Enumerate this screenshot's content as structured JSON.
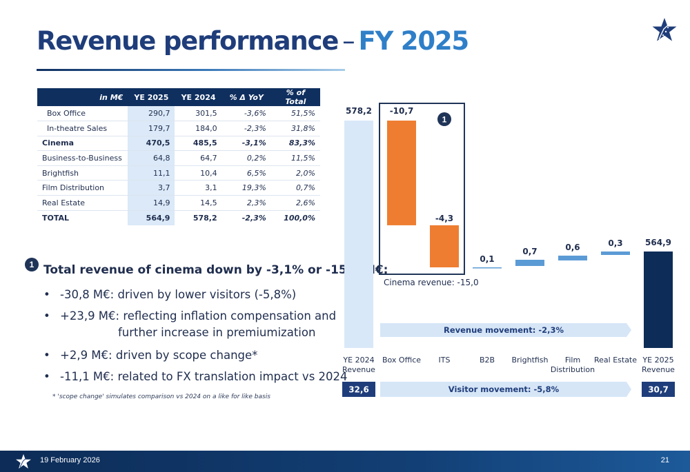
{
  "header": {
    "title": "Revenue performance",
    "dash": "–",
    "year": "FY 2025"
  },
  "table": {
    "headers": [
      "in M€",
      "YE 2025",
      "YE 2024",
      "% Δ YoY",
      "% of Total"
    ],
    "rows": [
      {
        "label": "Box Office",
        "ye2025": "290,7",
        "ye2024": "301,5",
        "yoy": "-3,6%",
        "pct": "51,5%",
        "indent": true,
        "bold": false
      },
      {
        "label": "In-theatre Sales",
        "ye2025": "179,7",
        "ye2024": "184,0",
        "yoy": "-2,3%",
        "pct": "31,8%",
        "indent": true,
        "bold": false
      },
      {
        "label": "Cinema",
        "ye2025": "470,5",
        "ye2024": "485,5",
        "yoy": "-3,1%",
        "pct": "83,3%",
        "indent": false,
        "bold": true
      },
      {
        "label": "Business-to-Business",
        "ye2025": "64,8",
        "ye2024": "64,7",
        "yoy": "0,2%",
        "pct": "11,5%",
        "indent": false,
        "bold": false
      },
      {
        "label": "Brightfish",
        "ye2025": "11,1",
        "ye2024": "10,4",
        "yoy": "6,5%",
        "pct": "2,0%",
        "indent": false,
        "bold": false
      },
      {
        "label": "Film Distribution",
        "ye2025": "3,7",
        "ye2024": "3,1",
        "yoy": "19,3%",
        "pct": "0,7%",
        "indent": false,
        "bold": false
      },
      {
        "label": "Real Estate",
        "ye2025": "14,9",
        "ye2024": "14,5",
        "yoy": "2,3%",
        "pct": "2,6%",
        "indent": false,
        "bold": false
      },
      {
        "label": "TOTAL",
        "ye2025": "564,9",
        "ye2024": "578,2",
        "yoy": "-2,3%",
        "pct": "100,0%",
        "indent": false,
        "bold": true,
        "total": true
      }
    ]
  },
  "commentary": {
    "badge": "1",
    "title": "Total revenue of cinema down by -3,1% or -15,0 M€:",
    "bullet_char": "•",
    "bullets": [
      {
        "text": "-30,8 M€:  driven by lower visitors (-5,8%)"
      },
      {
        "text": "+23,9 M€:  reflecting inflation compensation and"
      },
      {
        "text": "further increase in premiumization"
      },
      {
        "text": "+2,9 M€:   driven by scope change*"
      },
      {
        "text": "-11,1 M€:  related to FX translation impact vs 2024"
      }
    ],
    "footnote": "* 'scope change' simulates comparison vs 2024 on a like for like basis"
  },
  "chart_data": {
    "type": "bar",
    "subtype": "waterfall",
    "categories": [
      "YE 2024 Revenue",
      "Box Office",
      "ITS",
      "B2B",
      "Brightfish",
      "Film Distribution",
      "Real Estate",
      "YE 2025 Revenue"
    ],
    "category_lines": [
      [
        "YE 2024",
        "Revenue"
      ],
      [
        "Box Office"
      ],
      [
        "ITS"
      ],
      [
        "B2B"
      ],
      [
        "Brightfish"
      ],
      [
        "Film",
        "Distribution"
      ],
      [
        "Real Estate"
      ],
      [
        "YE 2025",
        "Revenue"
      ]
    ],
    "values": [
      578.2,
      -10.7,
      -4.3,
      0.1,
      0.7,
      0.6,
      0.3,
      564.9
    ],
    "value_labels": [
      "578,2",
      "-10,7",
      "-4,3",
      "0,1",
      "0,7",
      "0,6",
      "0,3",
      "564,9"
    ],
    "bar_kinds": [
      "start",
      "delta",
      "delta",
      "delta",
      "delta",
      "delta",
      "delta",
      "end"
    ],
    "colors": {
      "start": "#d9e8f8",
      "negative": "#ee7d31",
      "positive": "#5b9bd5",
      "end": "#0d2c57",
      "box": "#1f3457",
      "arrow": "#d6e6f7",
      "visitor_box": "#1f3d7a"
    },
    "highlight_box": {
      "badge": "1",
      "caption": "Cinema revenue: -15,0",
      "categories": [
        "Box Office",
        "ITS"
      ]
    },
    "revenue_movement": "Revenue movement: -2,3%",
    "visitor_movement": "Visitor movement: -5,8%",
    "visitors_2024": "32,6",
    "visitors_2025": "30,7"
  },
  "footer": {
    "date": "19 February 2026",
    "page": "21"
  }
}
